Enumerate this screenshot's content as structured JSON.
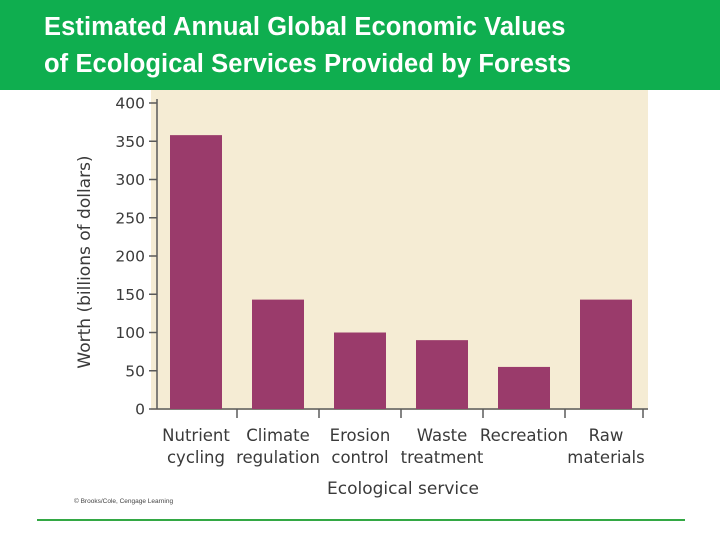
{
  "header": {
    "title_line1": "Estimated Annual Global Economic Values",
    "title_line2": "of Ecological Services Provided by Forests",
    "background": "#0fae4f"
  },
  "chart_data": {
    "type": "bar",
    "categories": [
      [
        "Nutrient",
        "cycling"
      ],
      [
        "Climate",
        "regulation"
      ],
      [
        "Erosion",
        "control"
      ],
      [
        "Waste",
        "treatment"
      ],
      [
        "Recreation"
      ],
      [
        "Raw",
        "materials"
      ]
    ],
    "values": [
      358,
      143,
      100,
      90,
      55,
      143
    ],
    "xlabel": "Ecological service",
    "ylabel": "Worth (billions of dollars)",
    "ylim": [
      0,
      400
    ],
    "yticks": [
      0,
      50,
      100,
      150,
      200,
      250,
      300,
      350,
      400
    ],
    "bar_color": "#9a3b6b",
    "plot_background": "#f5ecd4",
    "grid": false
  },
  "credit": "© Brooks/Cole, Cengage Learning"
}
